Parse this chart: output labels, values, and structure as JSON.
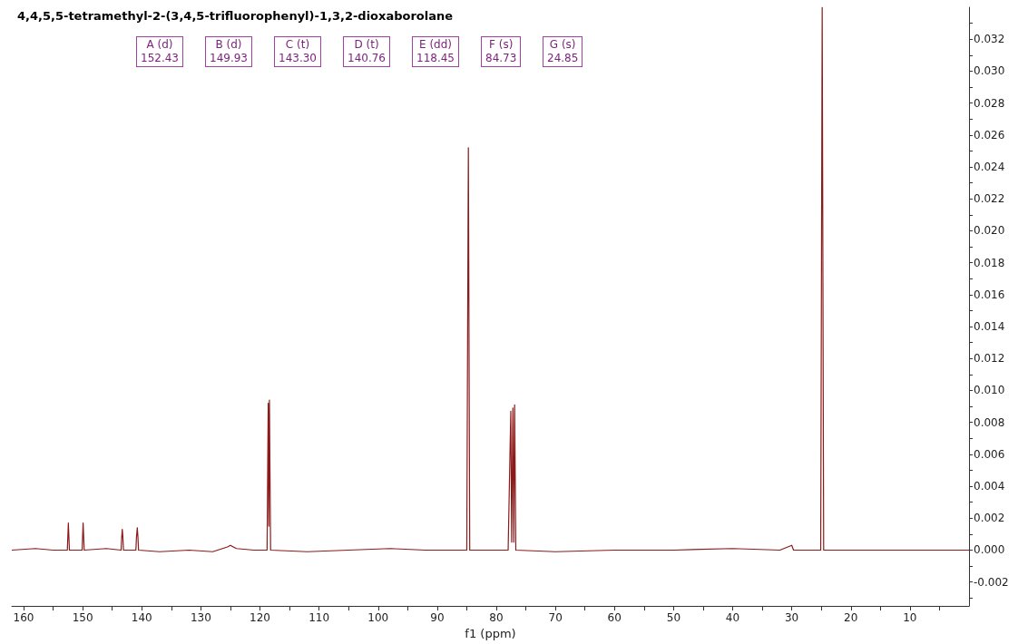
{
  "chart_data": {
    "type": "line",
    "title": "4,4,5,5-tetramethyl-2-(3,4,5-trifluorophenyl)-1,3,2-dioxaborolane",
    "xlabel": "f1 (ppm)",
    "xlim": [
      162,
      0
    ],
    "xticks": [
      160,
      {
        "value": 155,
        "label": null
      },
      150,
      {
        "value": 145,
        "label": null
      },
      140,
      {
        "value": 135,
        "label": null
      },
      130,
      {
        "value": 125,
        "label": null
      },
      120,
      {
        "value": 115,
        "label": null
      },
      110,
      {
        "value": 105,
        "label": null
      },
      100,
      {
        "value": 95,
        "label": null
      },
      90,
      {
        "value": 85,
        "label": null
      },
      80,
      {
        "value": 75,
        "label": null
      },
      70,
      {
        "value": 65,
        "label": null
      },
      60,
      {
        "value": 55,
        "label": null
      },
      50,
      {
        "value": 45,
        "label": null
      },
      40,
      {
        "value": 35,
        "label": null
      },
      30,
      {
        "value": 25,
        "label": null
      },
      20,
      {
        "value": 15,
        "label": null
      },
      10,
      {
        "value": 5,
        "label": null
      }
    ],
    "ylim": [
      -0.0035,
      0.034
    ],
    "yticks": [
      {
        "value": -0.003,
        "label": null
      },
      {
        "value": -0.002,
        "label": "-0.002"
      },
      {
        "value": -0.001,
        "label": null
      },
      {
        "value": 0,
        "label": "0.000"
      },
      {
        "value": 0.001,
        "label": null
      },
      {
        "value": 0.002,
        "label": "0.002"
      },
      {
        "value": 0.003,
        "label": null
      },
      {
        "value": 0.004,
        "label": "0.004"
      },
      {
        "value": 0.005,
        "label": null
      },
      {
        "value": 0.006,
        "label": "0.006"
      },
      {
        "value": 0.007,
        "label": null
      },
      {
        "value": 0.008,
        "label": "0.008"
      },
      {
        "value": 0.009,
        "label": null
      },
      {
        "value": 0.01,
        "label": "0.010"
      },
      {
        "value": 0.011,
        "label": null
      },
      {
        "value": 0.012,
        "label": "0.012"
      },
      {
        "value": 0.013,
        "label": null
      },
      {
        "value": 0.014,
        "label": "0.014"
      },
      {
        "value": 0.015,
        "label": null
      },
      {
        "value": 0.016,
        "label": "0.016"
      },
      {
        "value": 0.017,
        "label": null
      },
      {
        "value": 0.018,
        "label": "0.018"
      },
      {
        "value": 0.019,
        "label": null
      },
      {
        "value": 0.02,
        "label": "0.020"
      },
      {
        "value": 0.021,
        "label": null
      },
      {
        "value": 0.022,
        "label": "0.022"
      },
      {
        "value": 0.023,
        "label": null
      },
      {
        "value": 0.024,
        "label": "0.024"
      },
      {
        "value": 0.025,
        "label": null
      },
      {
        "value": 0.026,
        "label": "0.026"
      },
      {
        "value": 0.027,
        "label": null
      },
      {
        "value": 0.028,
        "label": "0.028"
      },
      {
        "value": 0.029,
        "label": null
      },
      {
        "value": 0.03,
        "label": "0.030"
      },
      {
        "value": 0.031,
        "label": null
      },
      {
        "value": 0.032,
        "label": "0.032"
      },
      {
        "value": 0.033,
        "label": null
      }
    ],
    "grid": false,
    "marker": "none",
    "line_style": "solid",
    "series": [
      {
        "color": "#8b1a1a",
        "x": [
          162,
          158,
          155,
          152.6,
          152.43,
          152.25,
          150.1,
          149.93,
          149.75,
          146,
          143.5,
          143.4,
          143.3,
          143.2,
          143.1,
          141,
          140.9,
          140.76,
          140.65,
          140.55,
          137,
          132,
          128,
          125.5,
          125,
          124,
          121,
          118.8,
          118.6,
          118.5,
          118.4,
          118.2,
          112,
          105,
          98,
          92,
          85,
          84.73,
          84.5,
          78,
          77.55,
          77.4,
          77.2,
          77.05,
          76.9,
          76.7,
          70,
          60,
          50,
          40,
          32,
          30,
          29.7,
          25.1,
          24.85,
          24.6,
          20,
          10,
          0
        ],
        "values": [
          0,
          0.0001,
          0,
          0,
          0.0017,
          0,
          0,
          0.0017,
          0,
          0.0001,
          0,
          0.0008,
          0.0013,
          0.0008,
          0,
          0,
          0.0008,
          0.0014,
          0.0008,
          0,
          -0.0001,
          0,
          -0.0001,
          0.0002,
          0.0003,
          0.0001,
          0,
          0,
          0.0092,
          0.0015,
          0.0094,
          0,
          -0.0001,
          0,
          0.0001,
          0,
          0,
          0.0252,
          0,
          0,
          0.0087,
          0.0005,
          0.0089,
          0.0005,
          0.0091,
          0,
          -0.0001,
          0,
          0,
          0.0001,
          0,
          0.0003,
          0,
          0,
          0.034,
          0,
          0,
          0,
          0
        ]
      }
    ],
    "annotations": [
      "A (d)\n152.43",
      "B (d)\n149.93",
      "C (t)\n143.30",
      "D (t)\n140.76",
      "E (dd)\n118.45",
      "F (s)\n84.73",
      "G (s)\n24.85"
    ]
  }
}
